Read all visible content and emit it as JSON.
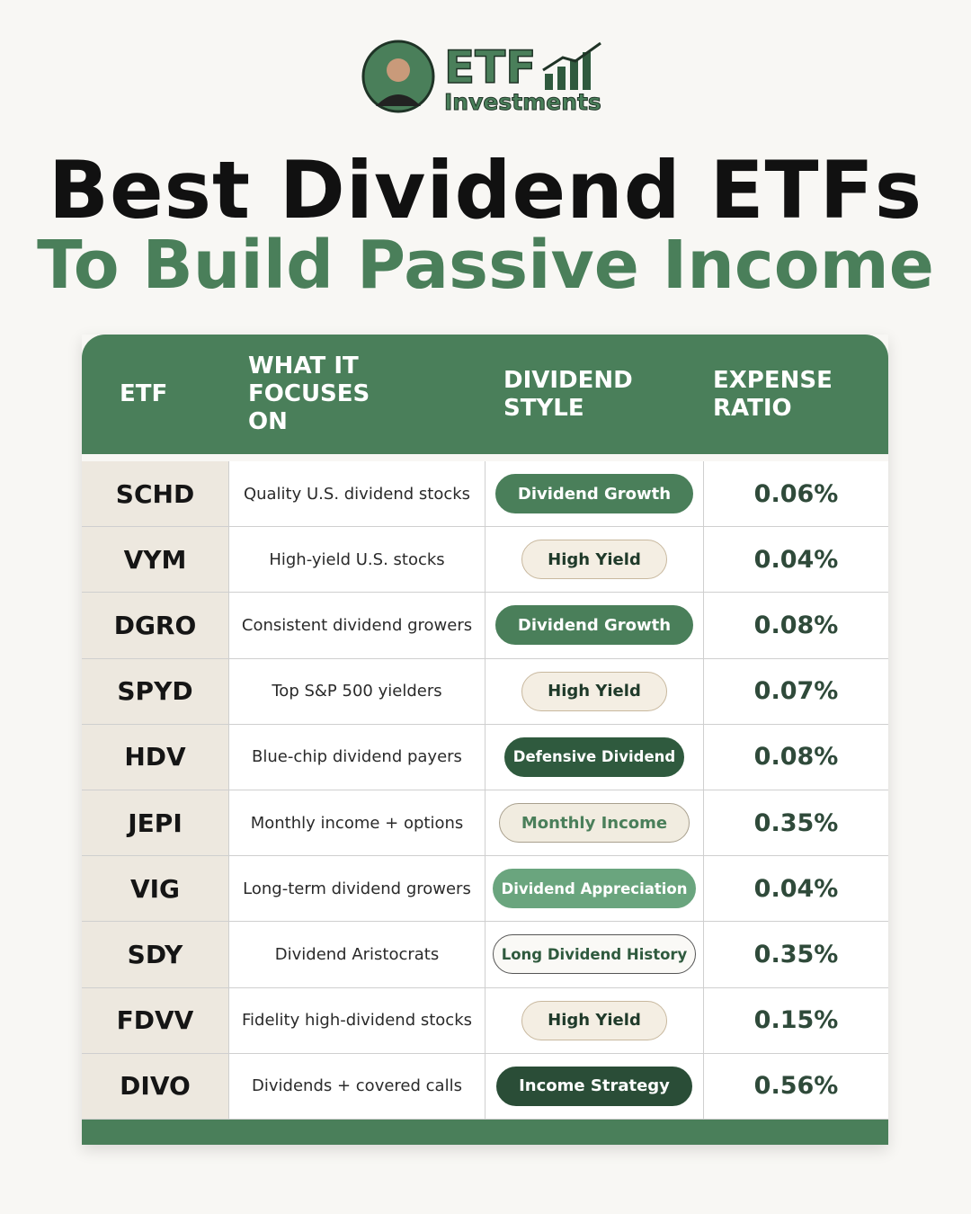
{
  "header": {
    "logo": {
      "top": "ETF",
      "bottom": "Investments"
    },
    "title": "Best Dividend ETFs",
    "subtitle": "To Build Passive Income"
  },
  "table": {
    "columns": [
      "ETF",
      "WHAT IT FOCUSES ON",
      "DIVIDEND STYLE",
      "EXPENSE RATIO"
    ],
    "rows": [
      {
        "etf": "SCHD",
        "focus": "Quality U.S. dividend stocks",
        "style": "Dividend Growth",
        "expense": "0.06%",
        "pill_fill": "#4a7f5a",
        "pill_text": "#ffffff",
        "pill_border": "#4a7f5a"
      },
      {
        "etf": "VYM",
        "focus": "High-yield U.S. stocks",
        "style": "High Yield",
        "expense": "0.04%",
        "pill_fill": "#f4eee3",
        "pill_text": "#1f3a2a",
        "pill_border": "#c8b89e"
      },
      {
        "etf": "DGRO",
        "focus": "Consistent dividend growers",
        "style": "Dividend Growth",
        "expense": "0.08%",
        "pill_fill": "#4a7f5a",
        "pill_text": "#ffffff",
        "pill_border": "#4a7f5a"
      },
      {
        "etf": "SPYD",
        "focus": "Top S&P 500 yielders",
        "style": "High Yield",
        "expense": "0.07%",
        "pill_fill": "#f4eee3",
        "pill_text": "#1f3a2a",
        "pill_border": "#c8b89e"
      },
      {
        "etf": "HDV",
        "focus": "Blue-chip dividend payers",
        "style": "Defensive Dividend",
        "expense": "0.08%",
        "pill_fill": "#2f5a3e",
        "pill_text": "#ffffff",
        "pill_border": "#2f5a3e"
      },
      {
        "etf": "JEPI",
        "focus": "Monthly income + options",
        "style": "Monthly Income",
        "expense": "0.35%",
        "pill_fill": "#f1ece0",
        "pill_text": "#4a7f5a",
        "pill_border": "#a9a08e"
      },
      {
        "etf": "VIG",
        "focus": "Long-term dividend growers",
        "style": "Dividend Appreciation",
        "expense": "0.04%",
        "pill_fill": "#6aa57e",
        "pill_text": "#ffffff",
        "pill_border": "#6aa57e"
      },
      {
        "etf": "SDY",
        "focus": "Dividend Aristocrats",
        "style": "Long Dividend History",
        "expense": "0.35%",
        "pill_fill": "#faf9f6",
        "pill_text": "#2f5a3e",
        "pill_border": "#555555"
      },
      {
        "etf": "FDVV",
        "focus": "Fidelity high-dividend stocks",
        "style": "High Yield",
        "expense": "0.15%",
        "pill_fill": "#f4eee3",
        "pill_text": "#1f3a2a",
        "pill_border": "#c8b89e"
      },
      {
        "etf": "DIVO",
        "focus": "Dividends + covered calls",
        "style": "Income Strategy",
        "expense": "0.56%",
        "pill_fill": "#2a4d37",
        "pill_text": "#ffffff",
        "pill_border": "#2a4d37"
      }
    ]
  }
}
